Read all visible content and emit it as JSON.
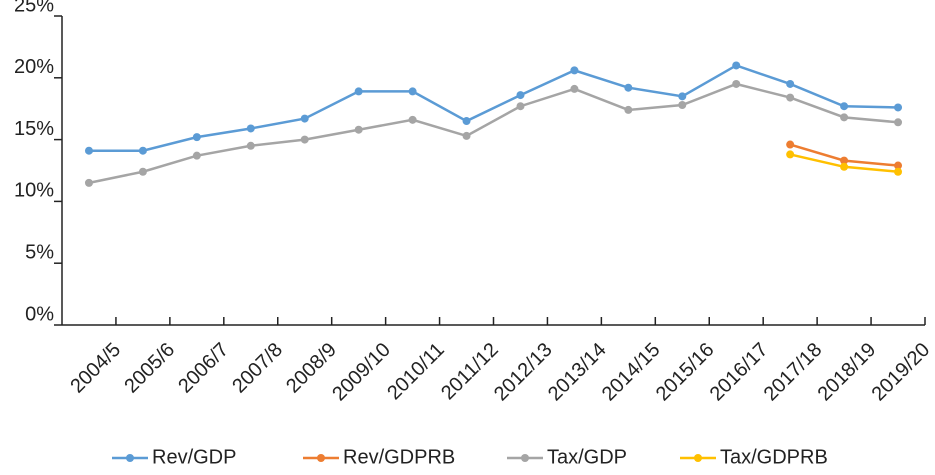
{
  "chart_data": {
    "type": "line",
    "categories": [
      "2004/5",
      "2005/6",
      "2006/7",
      "2007/8",
      "2008/9",
      "2009/10",
      "2010/11",
      "2011/12",
      "2012/13",
      "2013/14",
      "2014/15",
      "2015/16",
      "2016/17",
      "2017/18",
      "2018/19",
      "2019/20"
    ],
    "series": [
      {
        "name": "Rev/GDP",
        "color": "#5b9bd5",
        "values": [
          14.1,
          14.1,
          15.2,
          15.9,
          16.7,
          18.9,
          18.9,
          16.5,
          18.6,
          20.6,
          19.2,
          18.5,
          21.0,
          19.5,
          17.7,
          17.6
        ]
      },
      {
        "name": "Rev/GDPRB",
        "color": "#ed7d31",
        "values": [
          null,
          null,
          null,
          null,
          null,
          null,
          null,
          null,
          null,
          null,
          null,
          null,
          null,
          14.6,
          13.3,
          12.9
        ]
      },
      {
        "name": "Tax/GDP",
        "color": "#a5a5a5",
        "values": [
          11.5,
          12.4,
          13.7,
          14.5,
          15.0,
          15.8,
          16.6,
          15.3,
          17.7,
          19.1,
          17.4,
          17.8,
          19.5,
          18.4,
          16.8,
          16.4
        ]
      },
      {
        "name": "Tax/GDPRB",
        "color": "#ffc000",
        "values": [
          null,
          null,
          null,
          null,
          null,
          null,
          null,
          null,
          null,
          null,
          null,
          null,
          null,
          13.8,
          12.8,
          12.4
        ]
      }
    ],
    "ylim": [
      0,
      25
    ],
    "yticks": [
      {
        "value": 0,
        "label": "0%"
      },
      {
        "value": 5,
        "label": "5%"
      },
      {
        "value": 10,
        "label": "10%"
      },
      {
        "value": 15,
        "label": "15%"
      },
      {
        "value": 20,
        "label": "20%"
      },
      {
        "value": 25,
        "label": "25%"
      }
    ],
    "legend": "bottom"
  }
}
